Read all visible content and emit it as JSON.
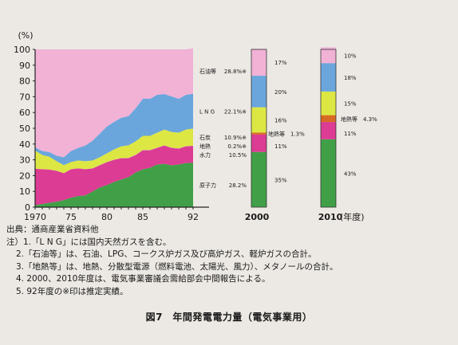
{
  "chart_data": {
    "type": "area",
    "y_unit_label": "(%)",
    "ylim": [
      0,
      100
    ],
    "y_ticks": [
      0,
      10,
      20,
      30,
      40,
      50,
      60,
      70,
      80,
      90,
      100
    ],
    "x_tick_labels": [
      "1970",
      "75",
      "80",
      "85",
      "92"
    ],
    "x_axis_note": "(年度)",
    "x": [
      1970,
      1971,
      1972,
      1973,
      1974,
      1975,
      1976,
      1977,
      1978,
      1979,
      1980,
      1981,
      1982,
      1983,
      1984,
      1985,
      1986,
      1987,
      1988,
      1989,
      1990,
      1991,
      1992
    ],
    "series_order_bottom_to_top": [
      "nuclear",
      "hydro",
      "geothermal",
      "coal",
      "lng",
      "oil"
    ],
    "series": [
      {
        "key": "nuclear",
        "color": "#41a047",
        "values": [
          1.3,
          2.0,
          2.8,
          3.5,
          4.5,
          6.0,
          7.0,
          7.5,
          10.0,
          12.5,
          14.0,
          16.0,
          17.5,
          19.0,
          22.0,
          24.0,
          25.0,
          27.0,
          27.5,
          26.5,
          27.0,
          28.0,
          28.2
        ]
      },
      {
        "key": "hydro",
        "color": "#dc3c93",
        "values": [
          23.0,
          22.0,
          21.0,
          19.5,
          17.0,
          18.0,
          17.5,
          16.5,
          14.5,
          14.0,
          14.5,
          14.0,
          13.5,
          12.0,
          11.0,
          12.0,
          11.0,
          10.5,
          11.5,
          11.0,
          10.0,
          10.5,
          10.5
        ]
      },
      {
        "key": "geothermal",
        "color": "#c56ab8",
        "values": [
          0.1,
          0.1,
          0.1,
          0.1,
          0.1,
          0.1,
          0.1,
          0.1,
          0.1,
          0.1,
          0.1,
          0.1,
          0.1,
          0.2,
          0.2,
          0.2,
          0.2,
          0.2,
          0.2,
          0.2,
          0.2,
          0.2,
          0.2
        ]
      },
      {
        "key": "coal",
        "color": "#dde743",
        "values": [
          11.5,
          9.0,
          8.0,
          6.0,
          5.0,
          4.5,
          5.0,
          5.0,
          5.0,
          5.0,
          5.5,
          6.5,
          7.5,
          8.0,
          8.5,
          9.0,
          9.0,
          9.5,
          10.0,
          10.0,
          10.0,
          10.5,
          10.9
        ]
      },
      {
        "key": "lng",
        "color": "#6aa6dc",
        "values": [
          2.0,
          2.5,
          3.0,
          3.5,
          5.0,
          7.0,
          8.0,
          10.0,
          12.5,
          15.0,
          17.0,
          17.5,
          18.0,
          18.5,
          21.0,
          23.5,
          23.5,
          24.0,
          22.5,
          22.5,
          21.5,
          22.0,
          22.1
        ]
      },
      {
        "key": "oil",
        "color": "#f1b2d6",
        "values": [
          62.1,
          64.4,
          65.1,
          67.4,
          68.4,
          64.4,
          62.4,
          60.9,
          57.9,
          53.4,
          48.9,
          45.9,
          43.4,
          42.3,
          37.3,
          31.3,
          31.3,
          28.8,
          28.3,
          29.8,
          31.3,
          28.8,
          28.8
        ]
      }
    ],
    "labels_1992": [
      {
        "key": "oil",
        "name": "石油等",
        "value": "28.8%※"
      },
      {
        "key": "lng",
        "name": "L N G",
        "value": "22.1%※"
      },
      {
        "key": "coal",
        "name": "石炭",
        "value": "10.9%※"
      },
      {
        "key": "geothermal",
        "name": "地熱",
        "value": "0.2%※"
      },
      {
        "key": "hydro",
        "name": "水力",
        "value": "10.5%"
      },
      {
        "key": "nuclear",
        "name": "原子力",
        "value": "28.2%"
      }
    ],
    "projections": [
      {
        "label": "2000",
        "segments_bottom_to_top": [
          {
            "key": "nuclear",
            "value": 35,
            "label": "35%"
          },
          {
            "key": "hydro",
            "value": 11,
            "label": "11%"
          },
          {
            "key": "geothermal",
            "value": 1.3,
            "label": "1.3%",
            "name": "地熱等"
          },
          {
            "key": "coal",
            "value": 16,
            "label": "16%"
          },
          {
            "key": "lng",
            "value": 20,
            "label": "20%"
          },
          {
            "key": "oil",
            "value": 17,
            "label": "17%"
          }
        ]
      },
      {
        "label": "2010",
        "segments_bottom_to_top": [
          {
            "key": "nuclear",
            "value": 43,
            "label": "43%"
          },
          {
            "key": "hydro",
            "value": 11,
            "label": "11%"
          },
          {
            "key": "geothermal",
            "value": 4.3,
            "label": "4.3%",
            "name": "地熱等"
          },
          {
            "key": "coal",
            "value": 15,
            "label": "15%"
          },
          {
            "key": "lng",
            "value": 18,
            "label": "18%"
          },
          {
            "key": "oil",
            "value": 10,
            "label": "10%"
          }
        ]
      }
    ],
    "colors": {
      "geothermal_projection": "#d86a22",
      "axis": "#222222"
    }
  },
  "notes": {
    "source": "出典：通商産業省資料他",
    "lines": [
      "注）1.「L N G」には国内天然ガスを含む。",
      "2.「石油等」は、石油、LPG、コークス炉ガス及び高炉ガス、軽炉ガスの合計。",
      "3.「地熱等」は、地熱、分散型電源（燃料電池、太陽光、風力）、メタノールの合計。",
      "4. 2000、2010年度は、電気事業審議会需給部会中間報告による。",
      "5. 92年度の※印は推定実績。"
    ]
  },
  "caption": "図7　年間発電電力量（電気事業用）"
}
